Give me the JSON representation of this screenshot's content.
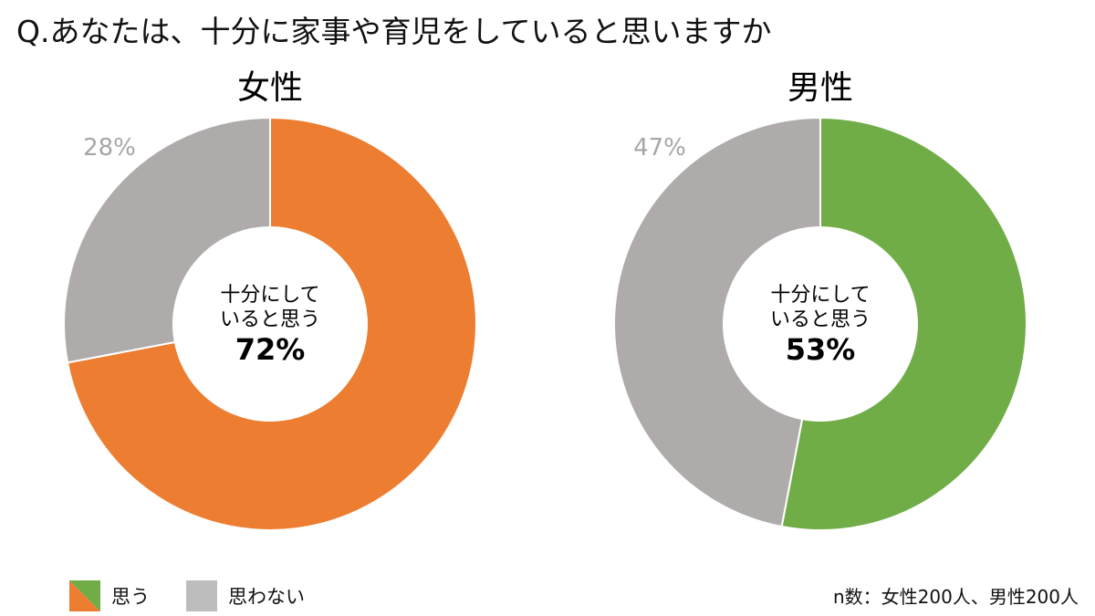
{
  "title": "Q.あなたは、十分に家事や育児をしていると思いますか",
  "legend": {
    "yes": "思う",
    "no": "思わない"
  },
  "note": "n数：女性200人、男性200人",
  "chart_data": [
    {
      "type": "pie",
      "variant": "donut",
      "title": "女性",
      "categories": [
        "思う",
        "思わない"
      ],
      "values": [
        72,
        28
      ],
      "colors": [
        "#ED7D31",
        "#AFABAB"
      ],
      "outside_label": "28%",
      "center_label": [
        "十分にして",
        "いると思う"
      ],
      "center_value": "72%"
    },
    {
      "type": "pie",
      "variant": "donut",
      "title": "男性",
      "categories": [
        "思う",
        "思わない"
      ],
      "values": [
        53,
        47
      ],
      "colors": [
        "#70AD47",
        "#AFABAB"
      ],
      "outside_label": "47%",
      "center_label": [
        "十分にして",
        "いると思う"
      ],
      "center_value": "53%"
    }
  ]
}
